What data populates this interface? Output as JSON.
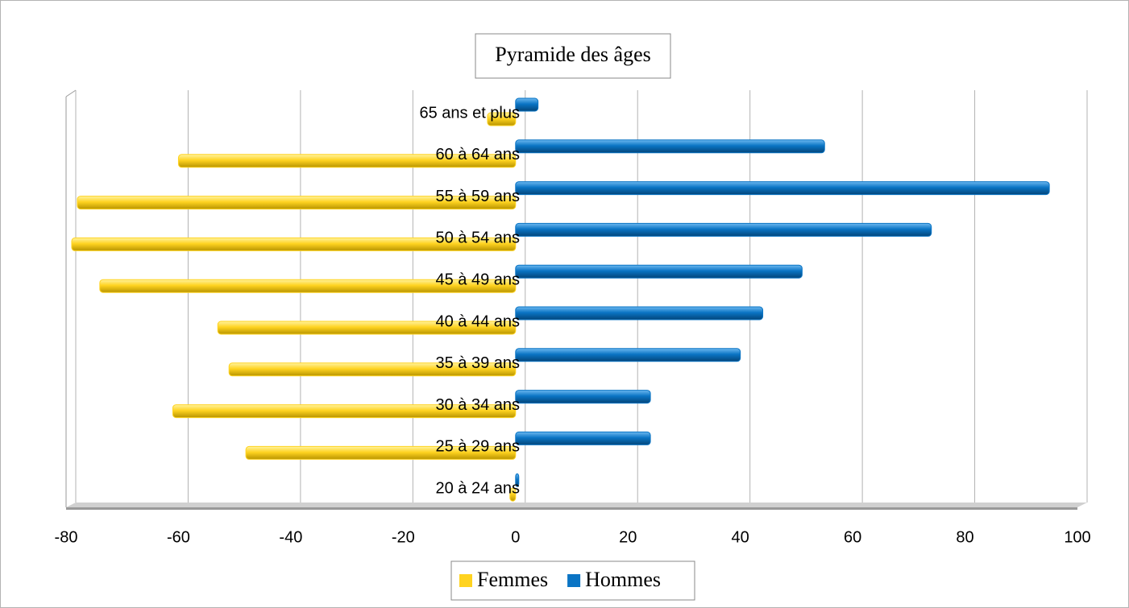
{
  "chart_data": {
    "type": "bar",
    "orientation": "horizontal",
    "title": "Pyramide des âges",
    "categories": [
      "65 ans et plus",
      "60 à 64 ans",
      "55 à 59 ans",
      "50 à 54 ans",
      "45 à 49 ans",
      "40 à 44 ans",
      "35 à 39 ans",
      "30 à 34 ans",
      "25 à 29 ans",
      "20 à 24 ans"
    ],
    "series": [
      {
        "name": "Femmes",
        "color": "#ffd320",
        "values": [
          -5,
          -60,
          -78,
          -79,
          -74,
          -53,
          -51,
          -61,
          -48,
          -1
        ]
      },
      {
        "name": "Hommes",
        "color": "#0a74c4",
        "values": [
          4,
          55,
          95,
          74,
          51,
          44,
          40,
          24,
          24,
          0
        ]
      }
    ],
    "xlim": [
      -80,
      100
    ],
    "xticks": [
      -80,
      -60,
      -40,
      -20,
      0,
      20,
      40,
      60,
      80,
      100
    ],
    "grid": true,
    "legend": "bottom"
  }
}
